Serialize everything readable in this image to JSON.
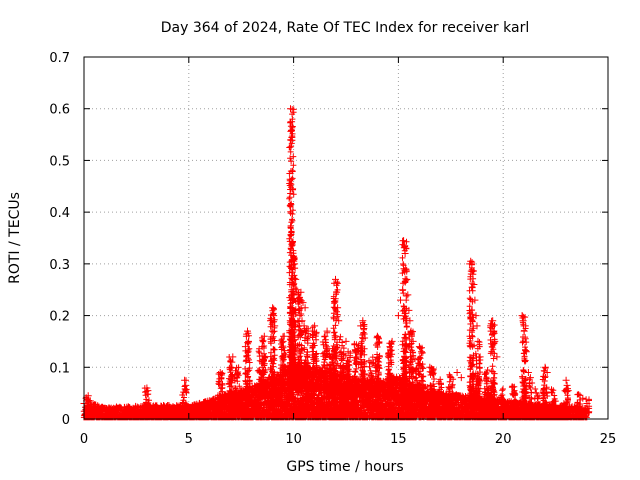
{
  "colors": {
    "series": "#ff0000",
    "grid": "#a0a0a0",
    "axis": "#000000",
    "background": "#ffffff"
  },
  "chart_data": {
    "type": "scatter",
    "title": "Day 364 of 2024, Rate Of TEC Index for receiver karl",
    "xlabel": "GPS time / hours",
    "ylabel": "ROTI / TECUs",
    "xlim": [
      0,
      25
    ],
    "ylim": [
      0,
      0.7
    ],
    "x_ticks": [
      0,
      5,
      10,
      15,
      20,
      25
    ],
    "y_ticks": [
      0,
      0.1,
      0.2,
      0.3,
      0.4,
      0.5,
      0.6,
      0.7
    ],
    "x_tick_labels": [
      "0",
      "5",
      "10",
      "15",
      "20",
      "25"
    ],
    "y_tick_labels": [
      "0",
      "0.1",
      "0.2",
      "0.3",
      "0.4",
      "0.5",
      "0.6",
      "0.7"
    ],
    "grid": true,
    "marker": "+",
    "series": [
      {
        "name": "ROTI",
        "baseline_profile": [
          [
            0.0,
            0.02
          ],
          [
            0.3,
            0.03
          ],
          [
            1.0,
            0.022
          ],
          [
            2.0,
            0.024
          ],
          [
            3.0,
            0.025
          ],
          [
            4.0,
            0.026
          ],
          [
            5.0,
            0.025
          ],
          [
            6.0,
            0.035
          ],
          [
            7.0,
            0.05
          ],
          [
            8.0,
            0.06
          ],
          [
            9.0,
            0.08
          ],
          [
            10.0,
            0.1
          ],
          [
            11.0,
            0.095
          ],
          [
            12.0,
            0.085
          ],
          [
            13.0,
            0.075
          ],
          [
            14.0,
            0.07
          ],
          [
            15.0,
            0.08
          ],
          [
            16.0,
            0.065
          ],
          [
            17.0,
            0.05
          ],
          [
            18.0,
            0.045
          ],
          [
            19.0,
            0.04
          ],
          [
            20.0,
            0.035
          ],
          [
            21.0,
            0.03
          ],
          [
            22.0,
            0.028
          ],
          [
            23.0,
            0.025
          ],
          [
            24.0,
            0.02
          ]
        ],
        "points": [
          [
            0.0,
            0.03
          ],
          [
            0.1,
            0.04
          ],
          [
            0.2,
            0.045
          ],
          [
            0.3,
            0.035
          ],
          [
            3.0,
            0.06
          ],
          [
            3.05,
            0.055
          ],
          [
            4.8,
            0.075
          ],
          [
            4.85,
            0.065
          ],
          [
            6.5,
            0.09
          ],
          [
            6.55,
            0.085
          ],
          [
            7.0,
            0.1
          ],
          [
            7.05,
            0.11
          ],
          [
            7.1,
            0.12
          ],
          [
            7.7,
            0.14
          ],
          [
            7.75,
            0.16
          ],
          [
            7.8,
            0.17
          ],
          [
            7.85,
            0.15
          ],
          [
            8.5,
            0.14
          ],
          [
            8.6,
            0.16
          ],
          [
            8.9,
            0.19
          ],
          [
            9.0,
            0.215
          ],
          [
            9.05,
            0.2
          ],
          [
            9.1,
            0.18
          ],
          [
            9.5,
            0.15
          ],
          [
            9.55,
            0.16
          ],
          [
            9.85,
            0.6
          ],
          [
            9.9,
            0.558
          ],
          [
            9.92,
            0.545
          ],
          [
            9.95,
            0.445
          ],
          [
            10.0,
            0.315
          ],
          [
            10.02,
            0.31
          ],
          [
            10.05,
            0.3
          ],
          [
            10.1,
            0.27
          ],
          [
            10.15,
            0.25
          ],
          [
            10.2,
            0.23
          ],
          [
            10.25,
            0.21
          ],
          [
            10.3,
            0.2
          ],
          [
            10.4,
            0.19
          ],
          [
            10.5,
            0.18
          ],
          [
            10.6,
            0.17
          ],
          [
            10.35,
            0.245
          ],
          [
            10.45,
            0.225
          ],
          [
            10.55,
            0.215
          ],
          [
            10.9,
            0.17
          ],
          [
            11.0,
            0.18
          ],
          [
            11.5,
            0.16
          ],
          [
            11.6,
            0.17
          ],
          [
            12.0,
            0.27
          ],
          [
            12.05,
            0.245
          ],
          [
            12.1,
            0.215
          ],
          [
            12.15,
            0.19
          ],
          [
            12.5,
            0.15
          ],
          [
            12.6,
            0.13
          ],
          [
            13.2,
            0.18
          ],
          [
            13.3,
            0.19
          ],
          [
            13.35,
            0.175
          ],
          [
            14.0,
            0.16
          ],
          [
            14.1,
            0.12
          ],
          [
            14.6,
            0.14
          ],
          [
            14.7,
            0.15
          ],
          [
            15.0,
            0.2
          ],
          [
            15.1,
            0.23
          ],
          [
            15.2,
            0.25
          ],
          [
            15.25,
            0.345
          ],
          [
            15.3,
            0.335
          ],
          [
            15.32,
            0.32
          ],
          [
            15.35,
            0.29
          ],
          [
            15.4,
            0.27
          ],
          [
            15.45,
            0.24
          ],
          [
            15.5,
            0.21
          ],
          [
            15.55,
            0.19
          ],
          [
            15.6,
            0.17
          ],
          [
            15.7,
            0.15
          ],
          [
            16.0,
            0.14
          ],
          [
            16.1,
            0.13
          ],
          [
            16.5,
            0.1
          ],
          [
            16.6,
            0.09
          ],
          [
            17.5,
            0.08
          ],
          [
            17.8,
            0.09
          ],
          [
            18.0,
            0.08
          ],
          [
            18.4,
            0.3
          ],
          [
            18.45,
            0.305
          ],
          [
            18.5,
            0.3
          ],
          [
            18.55,
            0.28
          ],
          [
            18.6,
            0.26
          ],
          [
            18.65,
            0.23
          ],
          [
            18.7,
            0.2
          ],
          [
            18.75,
            0.18
          ],
          [
            18.8,
            0.15
          ],
          [
            18.9,
            0.12
          ],
          [
            19.4,
            0.18
          ],
          [
            19.5,
            0.19
          ],
          [
            19.55,
            0.17
          ],
          [
            19.6,
            0.15
          ],
          [
            19.7,
            0.12
          ],
          [
            20.9,
            0.2
          ],
          [
            20.95,
            0.19
          ],
          [
            21.0,
            0.17
          ],
          [
            21.05,
            0.155
          ],
          [
            21.1,
            0.13
          ],
          [
            21.2,
            0.09
          ],
          [
            21.3,
            0.08
          ],
          [
            22.0,
            0.1
          ],
          [
            22.1,
            0.09
          ],
          [
            23.0,
            0.075
          ],
          [
            23.05,
            0.065
          ],
          [
            23.1,
            0.055
          ],
          [
            23.8,
            0.04
          ],
          [
            24.0,
            0.03
          ]
        ],
        "spikes": [
          [
            0.2,
            0.045
          ],
          [
            3.0,
            0.06
          ],
          [
            4.8,
            0.075
          ],
          [
            6.5,
            0.09
          ],
          [
            7.0,
            0.12
          ],
          [
            7.3,
            0.11
          ],
          [
            7.8,
            0.17
          ],
          [
            8.4,
            0.14
          ],
          [
            8.6,
            0.16
          ],
          [
            9.0,
            0.215
          ],
          [
            9.5,
            0.16
          ],
          [
            9.9,
            0.6
          ],
          [
            10.0,
            0.315
          ],
          [
            10.3,
            0.245
          ],
          [
            10.6,
            0.18
          ],
          [
            11.0,
            0.18
          ],
          [
            11.5,
            0.17
          ],
          [
            11.8,
            0.14
          ],
          [
            12.0,
            0.27
          ],
          [
            12.3,
            0.16
          ],
          [
            12.6,
            0.13
          ],
          [
            13.0,
            0.15
          ],
          [
            13.3,
            0.19
          ],
          [
            13.7,
            0.12
          ],
          [
            14.0,
            0.16
          ],
          [
            14.6,
            0.15
          ],
          [
            15.3,
            0.345
          ],
          [
            15.6,
            0.17
          ],
          [
            15.9,
            0.12
          ],
          [
            16.1,
            0.14
          ],
          [
            16.6,
            0.1
          ],
          [
            17.0,
            0.08
          ],
          [
            17.5,
            0.09
          ],
          [
            18.5,
            0.305
          ],
          [
            18.8,
            0.15
          ],
          [
            19.2,
            0.1
          ],
          [
            19.5,
            0.19
          ],
          [
            20.0,
            0.06
          ],
          [
            20.5,
            0.07
          ],
          [
            21.0,
            0.2
          ],
          [
            21.3,
            0.08
          ],
          [
            21.6,
            0.06
          ],
          [
            22.0,
            0.1
          ],
          [
            22.4,
            0.06
          ],
          [
            23.0,
            0.075
          ],
          [
            23.6,
            0.05
          ],
          [
            24.0,
            0.04
          ]
        ]
      }
    ]
  }
}
